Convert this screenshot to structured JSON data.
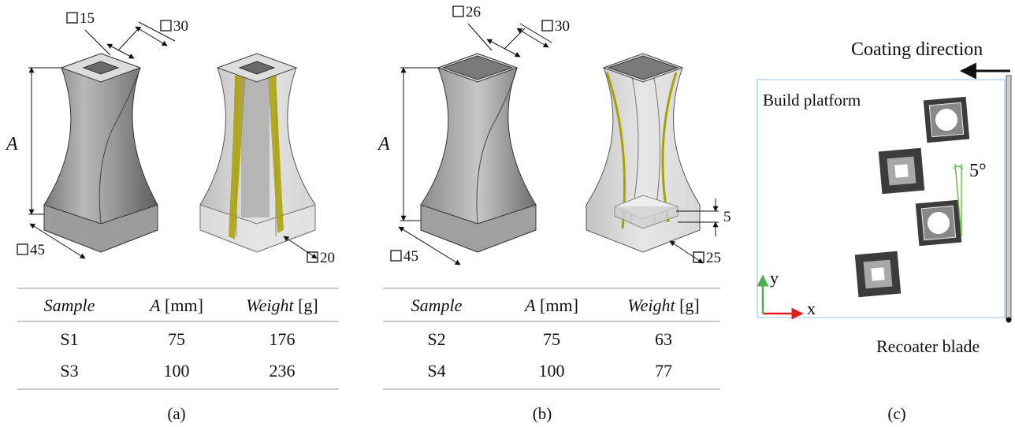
{
  "panel_a": {
    "caption": "(a)",
    "dim_top_inner": "15",
    "dim_top_outer": "30",
    "dim_height": "A",
    "dim_base": "45",
    "dim_base_inner": "20",
    "table": {
      "headers": [
        {
          "name": "Sample",
          "unit": ""
        },
        {
          "name": "A",
          "unit": "[mm]"
        },
        {
          "name": "Weight",
          "unit": "[g]"
        }
      ],
      "rows": [
        [
          "S1",
          "75",
          "176"
        ],
        [
          "S3",
          "100",
          "236"
        ]
      ]
    }
  },
  "panel_b": {
    "caption": "(b)",
    "dim_top_inner": "26",
    "dim_top_outer": "30",
    "dim_height": "A",
    "dim_base": "45",
    "dim_base_inner": "25",
    "dim_plate": "5",
    "table": {
      "headers": [
        {
          "name": "Sample",
          "unit": ""
        },
        {
          "name": "A",
          "unit": "[mm]"
        },
        {
          "name": "Weight",
          "unit": "[g]"
        }
      ],
      "rows": [
        [
          "S2",
          "75",
          "63"
        ],
        [
          "S4",
          "100",
          "77"
        ]
      ]
    }
  },
  "panel_c": {
    "caption": "(c)",
    "coating_direction": "Coating direction",
    "build_platform": "Build platform",
    "angle": "5°",
    "recoater_blade": "Recoater blade",
    "axis_x": "x",
    "axis_y": "y",
    "colors": {
      "x_axis": "#e02020",
      "y_axis": "#4caf50",
      "platform_border": "#9ccbe8",
      "angle": "#6dbb45"
    }
  },
  "colors": {
    "body_fill": "#b3b3b3",
    "top_face": "#dcdcdc",
    "yellow": "#a8a000",
    "ghost": "#cfcfcf"
  }
}
